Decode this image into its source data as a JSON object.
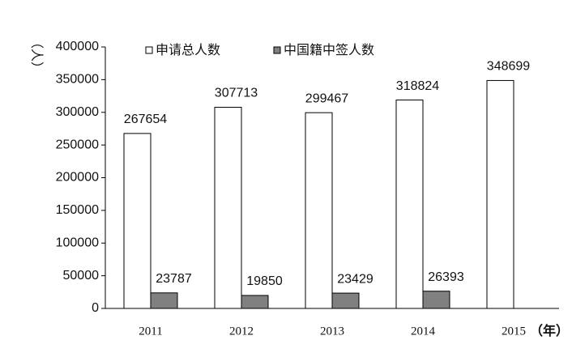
{
  "chart_data": {
    "type": "bar",
    "y_label": "（人）",
    "x_label": "（年）",
    "categories": [
      "2011",
      "2012",
      "2013",
      "2014",
      "2015"
    ],
    "series": [
      {
        "name": "申请总人数",
        "color": "#ffffff",
        "values": [
          267654,
          307713,
          299467,
          318824,
          348699
        ]
      },
      {
        "name": "中国籍中签人数",
        "color": "#808080",
        "values": [
          23787,
          19850,
          23429,
          26393,
          null
        ]
      }
    ],
    "ylim": [
      0,
      400000
    ],
    "yticks": [
      0,
      50000,
      100000,
      150000,
      200000,
      250000,
      300000,
      350000,
      400000
    ],
    "legend": "top"
  }
}
